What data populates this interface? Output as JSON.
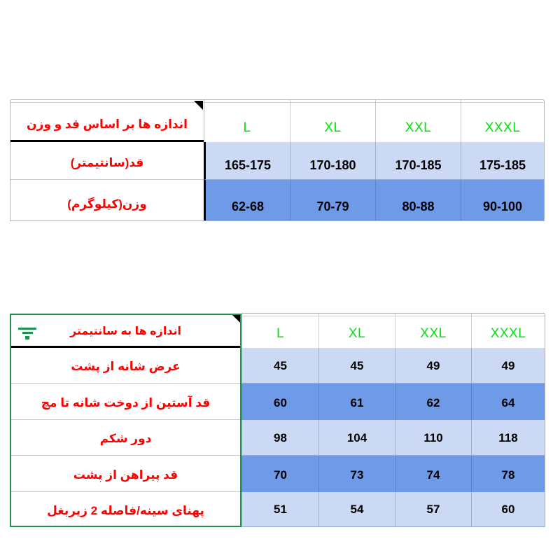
{
  "colors": {
    "label_red": "#fe0000",
    "size_green": "#00e40d",
    "row_light_blue": "#ccd9f4",
    "row_dark_blue": "#6e9ae8",
    "selection_green_border": "#1d9150",
    "thick_border_black": "#000000"
  },
  "icons": {
    "corner_marker": "corner-triangle-icon",
    "filter": "filter-icon"
  },
  "t1": {
    "corner_label": "اندازه ها بر اساس قد و وزن",
    "sizes": [
      "L",
      "XL",
      "XXL",
      "XXXL"
    ],
    "rows": [
      {
        "label": "قد(سانتیمتر)",
        "values": [
          "165-175",
          "170-180",
          "170-185",
          "175-185"
        ]
      },
      {
        "label": "وزن(کیلوگرم)",
        "values": [
          "62-68",
          "70-79",
          "80-88",
          "90-100"
        ]
      }
    ]
  },
  "t2": {
    "corner_label": "اندازه ها به سانتیمتر",
    "sizes": [
      "L",
      "XL",
      "XXL",
      "XXXL"
    ],
    "rows": [
      {
        "label": "عرض شانه از پشت",
        "values": [
          "45",
          "45",
          "49",
          "49"
        ]
      },
      {
        "label": "قد آستین از دوخت شانه تا مچ",
        "values": [
          "60",
          "61",
          "62",
          "64"
        ]
      },
      {
        "label": "دور شکم",
        "values": [
          "98",
          "104",
          "110",
          "118"
        ]
      },
      {
        "label": "قد پیراهن از پشت",
        "values": [
          "70",
          "73",
          "74",
          "78"
        ]
      },
      {
        "label": "پهنای سینه/فاصله 2 زیربغل",
        "values": [
          "51",
          "54",
          "57",
          "60"
        ]
      }
    ]
  }
}
